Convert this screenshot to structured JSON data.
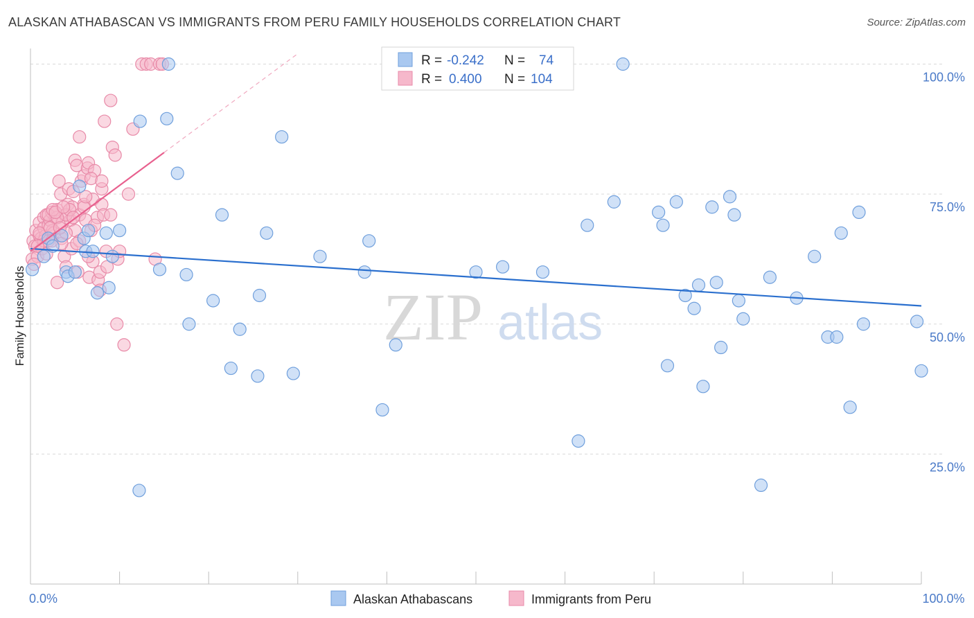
{
  "title": "ALASKAN ATHABASCAN VS IMMIGRANTS FROM PERU FAMILY HOUSEHOLDS CORRELATION CHART",
  "source": "Source: ZipAtlas.com",
  "watermark": {
    "zip": "ZIP",
    "atlas": "atlas"
  },
  "colors": {
    "blue_fill": "#a9c8f0",
    "blue_stroke": "#6f9fdc",
    "blue_line": "#2a6fce",
    "pink_fill": "#f6b8cb",
    "pink_stroke": "#e88aa8",
    "pink_line": "#e8608e",
    "grid": "#d9d9d9",
    "tick_text": "#4a7ac8"
  },
  "legend": {
    "rows": [
      {
        "r_label": "R =",
        "r_value": "-0.242",
        "n_label": "N =",
        "n_value": "74"
      },
      {
        "r_label": "R =",
        "r_value": "0.400",
        "n_label": "N =",
        "n_value": "104"
      }
    ]
  },
  "bottom_legend": [
    "Alaskan Athabascans",
    "Immigrants from Peru"
  ],
  "chart_data": {
    "type": "scatter",
    "title": "ALASKAN ATHABASCAN VS IMMIGRANTS FROM PERU FAMILY HOUSEHOLDS CORRELATION CHART",
    "xlabel": "",
    "ylabel": "Family Households",
    "xlim": [
      0,
      100
    ],
    "ylim": [
      0,
      103
    ],
    "x_tick_labels": [
      {
        "value": 0,
        "label": "0.0%"
      },
      {
        "value": 100,
        "label": "100.0%"
      }
    ],
    "y_tick_labels": [
      {
        "value": 25,
        "label": "25.0%"
      },
      {
        "value": 50,
        "label": "50.0%"
      },
      {
        "value": 75,
        "label": "75.0%"
      },
      {
        "value": 100,
        "label": "100.0%"
      }
    ],
    "grid": true,
    "legend_position": "top-center",
    "series": [
      {
        "name": "Alaskan Athabascans",
        "color": "blue",
        "trend": {
          "x0": 0,
          "y0": 64.5,
          "x1": 100,
          "y1": 53.5
        },
        "points": [
          [
            0.2,
            60.5
          ],
          [
            1.5,
            63.0
          ],
          [
            2.0,
            66.5
          ],
          [
            2.5,
            65.0
          ],
          [
            3.5,
            67.0
          ],
          [
            4.0,
            60.0
          ],
          [
            4.2,
            59.2
          ],
          [
            5.0,
            60.0
          ],
          [
            5.5,
            76.5
          ],
          [
            6.0,
            66.5
          ],
          [
            6.2,
            64.0
          ],
          [
            6.5,
            68.0
          ],
          [
            7.0,
            64.0
          ],
          [
            7.5,
            56.0
          ],
          [
            8.5,
            67.5
          ],
          [
            8.8,
            57.0
          ],
          [
            9.2,
            63.0
          ],
          [
            10.0,
            68.0
          ],
          [
            12.2,
            18.0
          ],
          [
            12.3,
            89.0
          ],
          [
            14.5,
            60.5
          ],
          [
            15.3,
            89.5
          ],
          [
            15.5,
            100.0
          ],
          [
            16.5,
            79.0
          ],
          [
            17.5,
            59.5
          ],
          [
            17.8,
            50.0
          ],
          [
            20.5,
            54.5
          ],
          [
            21.5,
            71.0
          ],
          [
            22.5,
            41.5
          ],
          [
            23.5,
            49.0
          ],
          [
            25.5,
            40.0
          ],
          [
            25.7,
            55.5
          ],
          [
            26.5,
            67.5
          ],
          [
            28.2,
            86.0
          ],
          [
            29.5,
            40.5
          ],
          [
            32.5,
            63.0
          ],
          [
            37.5,
            60.0
          ],
          [
            38.0,
            66.0
          ],
          [
            39.5,
            33.5
          ],
          [
            41.0,
            46.0
          ],
          [
            50.0,
            60.0
          ],
          [
            53.0,
            61.0
          ],
          [
            57.5,
            60.0
          ],
          [
            61.5,
            27.5
          ],
          [
            62.5,
            69.0
          ],
          [
            65.5,
            73.5
          ],
          [
            66.5,
            100.0
          ],
          [
            70.5,
            71.5
          ],
          [
            71.0,
            69.0
          ],
          [
            71.5,
            42.0
          ],
          [
            72.5,
            73.5
          ],
          [
            73.5,
            55.5
          ],
          [
            74.5,
            53.0
          ],
          [
            75.0,
            57.5
          ],
          [
            75.5,
            38.0
          ],
          [
            77.0,
            58.0
          ],
          [
            77.5,
            45.5
          ],
          [
            78.5,
            74.5
          ],
          [
            79.0,
            71.0
          ],
          [
            79.5,
            54.5
          ],
          [
            80.0,
            51.0
          ],
          [
            83.0,
            59.0
          ],
          [
            86.0,
            55.0
          ],
          [
            88.0,
            63.0
          ],
          [
            89.5,
            47.5
          ],
          [
            90.5,
            47.5
          ],
          [
            91.0,
            67.5
          ],
          [
            92.0,
            34.0
          ],
          [
            93.0,
            71.5
          ],
          [
            93.5,
            50.0
          ],
          [
            99.5,
            50.5
          ],
          [
            100.0,
            41.0
          ],
          [
            82.0,
            19.0
          ],
          [
            76.5,
            72.5
          ]
        ]
      },
      {
        "name": "Immigrants from Peru",
        "color": "pink",
        "trend": {
          "x0": 0,
          "y0": 64.0,
          "x1": 15,
          "y1": 83.0
        },
        "trend_dashed": {
          "x0": 15,
          "y0": 83.0,
          "x1": 30,
          "y1": 102.0
        },
        "points": [
          [
            0.2,
            62.5
          ],
          [
            0.3,
            66.0
          ],
          [
            0.5,
            65.0
          ],
          [
            0.6,
            68.0
          ],
          [
            0.8,
            63.0
          ],
          [
            1.0,
            69.5
          ],
          [
            1.0,
            67.0
          ],
          [
            1.2,
            66.5
          ],
          [
            1.3,
            64.5
          ],
          [
            1.5,
            70.5
          ],
          [
            1.5,
            68.5
          ],
          [
            1.7,
            67.0
          ],
          [
            1.8,
            71.0
          ],
          [
            2.0,
            69.0
          ],
          [
            2.0,
            66.0
          ],
          [
            2.2,
            70.0
          ],
          [
            2.4,
            71.5
          ],
          [
            2.5,
            68.0
          ],
          [
            2.6,
            67.5
          ],
          [
            2.8,
            70.5
          ],
          [
            3.0,
            72.0
          ],
          [
            3.0,
            58.0
          ],
          [
            3.2,
            77.5
          ],
          [
            3.4,
            75.0
          ],
          [
            3.5,
            66.5
          ],
          [
            3.6,
            69.5
          ],
          [
            3.8,
            63.0
          ],
          [
            3.9,
            71.0
          ],
          [
            4.0,
            61.0
          ],
          [
            4.2,
            73.0
          ],
          [
            4.3,
            76.0
          ],
          [
            4.5,
            70.0
          ],
          [
            4.6,
            64.5
          ],
          [
            4.7,
            72.5
          ],
          [
            4.8,
            75.5
          ],
          [
            5.0,
            68.0
          ],
          [
            5.0,
            81.5
          ],
          [
            5.2,
            80.5
          ],
          [
            5.3,
            60.0
          ],
          [
            5.5,
            71.0
          ],
          [
            5.7,
            77.5
          ],
          [
            6.0,
            73.0
          ],
          [
            6.0,
            78.5
          ],
          [
            6.2,
            70.0
          ],
          [
            6.4,
            80.0
          ],
          [
            6.5,
            81.0
          ],
          [
            6.6,
            59.0
          ],
          [
            6.8,
            68.0
          ],
          [
            7.0,
            74.0
          ],
          [
            7.0,
            62.0
          ],
          [
            7.2,
            79.5
          ],
          [
            7.5,
            70.5
          ],
          [
            7.6,
            58.5
          ],
          [
            7.8,
            60.0
          ],
          [
            8.0,
            73.0
          ],
          [
            8.0,
            76.0
          ],
          [
            8.2,
            71.0
          ],
          [
            8.3,
            89.0
          ],
          [
            8.5,
            64.0
          ],
          [
            8.6,
            61.0
          ],
          [
            9.0,
            93.0
          ],
          [
            9.2,
            84.0
          ],
          [
            9.5,
            82.5
          ],
          [
            9.7,
            50.0
          ],
          [
            9.8,
            62.5
          ],
          [
            10.0,
            64.0
          ],
          [
            10.5,
            46.0
          ],
          [
            11.0,
            75.0
          ],
          [
            11.5,
            87.5
          ],
          [
            12.5,
            100.0
          ],
          [
            13.0,
            100.0
          ],
          [
            13.5,
            100.0
          ],
          [
            14.0,
            62.5
          ],
          [
            14.5,
            100.0
          ],
          [
            14.8,
            100.0
          ],
          [
            5.5,
            86.0
          ],
          [
            6.0,
            72.5
          ],
          [
            4.0,
            71.0
          ],
          [
            2.0,
            71.0
          ],
          [
            1.5,
            66.0
          ],
          [
            3.0,
            70.5
          ],
          [
            2.5,
            72.0
          ],
          [
            3.5,
            65.5
          ],
          [
            4.0,
            67.5
          ],
          [
            5.5,
            66.0
          ],
          [
            6.5,
            63.0
          ],
          [
            1.0,
            67.5
          ],
          [
            0.8,
            65.0
          ],
          [
            2.2,
            68.5
          ],
          [
            2.8,
            71.5
          ],
          [
            3.3,
            68.5
          ],
          [
            4.4,
            72.0
          ],
          [
            6.8,
            78.0
          ],
          [
            7.2,
            69.0
          ],
          [
            8.0,
            77.5
          ],
          [
            9.0,
            71.0
          ],
          [
            5.2,
            65.5
          ],
          [
            4.8,
            70.5
          ],
          [
            3.7,
            72.5
          ],
          [
            6.2,
            74.5
          ],
          [
            1.8,
            63.5
          ],
          [
            2.4,
            66.0
          ],
          [
            7.8,
            56.5
          ],
          [
            0.4,
            61.5
          ]
        ]
      }
    ]
  }
}
